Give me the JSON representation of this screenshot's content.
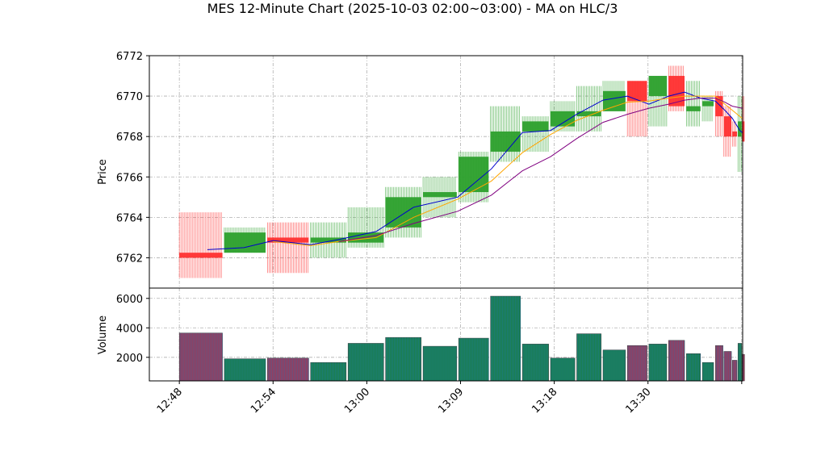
{
  "chart_data": {
    "type": "ohlc-candlestick-with-volume",
    "title": "MES 12-Minute Chart (2025-10-03 02:00~03:00) - MA on HLC/3",
    "price_panel": {
      "ylabel": "Price",
      "ylim": [
        6760.5,
        6772.0
      ],
      "yticks": [
        6762,
        6764,
        6766,
        6768,
        6770,
        6772
      ],
      "grid": true
    },
    "volume_panel": {
      "ylabel": "Volume",
      "ylim": [
        400,
        6700
      ],
      "yticks": [
        2000,
        4000,
        6000
      ],
      "grid": true
    },
    "xlim": [
      -3.2,
      60.1
    ],
    "xticks": [
      {
        "pos": 0,
        "label": "12:48"
      },
      {
        "pos": 10,
        "label": "12:54"
      },
      {
        "pos": 20,
        "label": "13:00"
      },
      {
        "pos": 30,
        "label": "13:09"
      },
      {
        "pos": 40,
        "label": "13:18"
      },
      {
        "pos": 50,
        "label": "13:30"
      },
      {
        "pos": 60,
        "label": ""
      }
    ],
    "colors": {
      "up": "#2ca02c",
      "down": "#ff3030",
      "vol_up_fill": "#1a7f4b",
      "vol_down_fill": "#9c3a5a",
      "vol_bar_line": "#1f77b4",
      "ma_fast": "#0000cd",
      "ma_mid": "#ffa500",
      "ma_slow": "#800080",
      "grid": "#b0b0b0"
    },
    "candles": [
      {
        "x0": 0,
        "x1": 4.6,
        "open": 6762.25,
        "high": 6764.25,
        "low": 6761.0,
        "close": 6762.0,
        "volume": 3650
      },
      {
        "x0": 4.8,
        "x1": 9.2,
        "open": 6762.25,
        "high": 6763.5,
        "low": 6762.25,
        "close": 6763.25,
        "volume": 1900
      },
      {
        "x0": 9.4,
        "x1": 13.8,
        "open": 6763.0,
        "high": 6763.75,
        "low": 6761.25,
        "close": 6762.75,
        "volume": 1950
      },
      {
        "x0": 14.0,
        "x1": 17.8,
        "open": 6762.75,
        "high": 6763.75,
        "low": 6762.0,
        "close": 6763.0,
        "volume": 1650
      },
      {
        "x0": 18.0,
        "x1": 21.8,
        "open": 6762.75,
        "high": 6764.5,
        "low": 6762.5,
        "close": 6763.25,
        "volume": 2950
      },
      {
        "x0": 22.0,
        "x1": 25.8,
        "open": 6763.5,
        "high": 6765.5,
        "low": 6763.0,
        "close": 6765.0,
        "volume": 3350
      },
      {
        "x0": 26.0,
        "x1": 29.6,
        "open": 6765.0,
        "high": 6766.0,
        "low": 6764.0,
        "close": 6765.25,
        "volume": 2750
      },
      {
        "x0": 29.8,
        "x1": 33.0,
        "open": 6765.25,
        "high": 6767.25,
        "low": 6764.75,
        "close": 6767.0,
        "volume": 3300
      },
      {
        "x0": 33.2,
        "x1": 36.4,
        "open": 6767.25,
        "high": 6769.5,
        "low": 6766.75,
        "close": 6768.25,
        "volume": 6150
      },
      {
        "x0": 36.6,
        "x1": 39.4,
        "open": 6768.25,
        "high": 6769.0,
        "low": 6767.25,
        "close": 6768.75,
        "volume": 2900
      },
      {
        "x0": 39.6,
        "x1": 42.2,
        "open": 6768.5,
        "high": 6769.75,
        "low": 6768.25,
        "close": 6769.25,
        "volume": 1950
      },
      {
        "x0": 42.4,
        "x1": 45.0,
        "open": 6769.0,
        "high": 6770.5,
        "low": 6768.25,
        "close": 6769.25,
        "volume": 3600
      },
      {
        "x0": 45.2,
        "x1": 47.6,
        "open": 6769.25,
        "high": 6770.75,
        "low": 6769.25,
        "close": 6770.25,
        "volume": 2500
      },
      {
        "x0": 47.8,
        "x1": 49.9,
        "open": 6770.75,
        "high": 6770.75,
        "low": 6768.0,
        "close": 6769.75,
        "volume": 2800
      },
      {
        "x0": 50.1,
        "x1": 52.0,
        "open": 6770.0,
        "high": 6771.0,
        "low": 6768.5,
        "close": 6771.0,
        "volume": 2900
      },
      {
        "x0": 52.2,
        "x1": 53.9,
        "open": 6771.0,
        "high": 6771.5,
        "low": 6769.25,
        "close": 6769.5,
        "volume": 3150
      },
      {
        "x0": 54.1,
        "x1": 55.6,
        "open": 6769.25,
        "high": 6770.75,
        "low": 6768.5,
        "close": 6769.5,
        "volume": 2250
      },
      {
        "x0": 55.8,
        "x1": 57.0,
        "open": 6769.5,
        "high": 6770.0,
        "low": 6768.75,
        "close": 6769.75,
        "volume": 1650
      },
      {
        "x0": 57.2,
        "x1": 58.0,
        "open": 6770.0,
        "high": 6770.25,
        "low": 6768.0,
        "close": 6769.0,
        "volume": 2800
      },
      {
        "x0": 58.1,
        "x1": 58.9,
        "open": 6769.0,
        "high": 6769.5,
        "low": 6767.0,
        "close": 6768.0,
        "volume": 2400
      },
      {
        "x0": 59.0,
        "x1": 59.5,
        "open": 6768.25,
        "high": 6768.75,
        "low": 6767.5,
        "close": 6768.0,
        "volume": 1800
      },
      {
        "x0": 59.6,
        "x1": 60.0,
        "open": 6768.0,
        "high": 6770.0,
        "low": 6766.25,
        "close": 6768.75,
        "volume": 2950
      },
      {
        "x0": 60.05,
        "x1": 60.3,
        "open": 6768.75,
        "high": 6770.0,
        "low": 6767.75,
        "close": 6767.75,
        "volume": 2200
      }
    ],
    "ma_series": [
      {
        "key": "ma_fast",
        "points": [
          [
            3,
            6762.4
          ],
          [
            6.9,
            6762.5
          ],
          [
            10,
            6762.85
          ],
          [
            14,
            6762.65
          ],
          [
            17,
            6762.9
          ],
          [
            21,
            6763.3
          ],
          [
            25,
            6764.5
          ],
          [
            29.7,
            6765.0
          ],
          [
            33.3,
            6766.4
          ],
          [
            36.6,
            6768.2
          ],
          [
            39.6,
            6768.3
          ],
          [
            42.4,
            6769.1
          ],
          [
            45.2,
            6769.8
          ],
          [
            47.8,
            6770.0
          ],
          [
            50.1,
            6769.6
          ],
          [
            52.2,
            6770.0
          ],
          [
            53.9,
            6770.2
          ],
          [
            55.6,
            6769.9
          ],
          [
            57.2,
            6769.75
          ],
          [
            58.2,
            6769.3
          ],
          [
            59,
            6768.9
          ],
          [
            59.8,
            6768.3
          ],
          [
            60.05,
            6768.2
          ]
        ]
      },
      {
        "key": "ma_mid",
        "points": [
          [
            10,
            6762.8
          ],
          [
            14,
            6762.6
          ],
          [
            17,
            6762.8
          ],
          [
            21,
            6763.0
          ],
          [
            25,
            6764.0
          ],
          [
            29.7,
            6764.9
          ],
          [
            33.3,
            6765.8
          ],
          [
            36.6,
            6767.2
          ],
          [
            39.6,
            6768.1
          ],
          [
            42.4,
            6768.8
          ],
          [
            45.2,
            6769.3
          ],
          [
            47.8,
            6769.7
          ],
          [
            50.1,
            6769.75
          ],
          [
            52.2,
            6769.9
          ],
          [
            53.9,
            6770.0
          ],
          [
            55.6,
            6770.0
          ],
          [
            57.2,
            6770.0
          ],
          [
            58.2,
            6769.6
          ],
          [
            59,
            6769.3
          ],
          [
            60.05,
            6768.9
          ]
        ]
      },
      {
        "key": "ma_slow",
        "points": [
          [
            17,
            6762.8
          ],
          [
            21,
            6763.1
          ],
          [
            25,
            6763.7
          ],
          [
            29.7,
            6764.3
          ],
          [
            33.3,
            6765.1
          ],
          [
            36.6,
            6766.3
          ],
          [
            39.6,
            6767.0
          ],
          [
            42.4,
            6767.9
          ],
          [
            45.2,
            6768.7
          ],
          [
            47.8,
            6769.1
          ],
          [
            50.1,
            6769.4
          ],
          [
            52.2,
            6769.6
          ],
          [
            53.9,
            6769.8
          ],
          [
            55.6,
            6769.9
          ],
          [
            57.2,
            6769.9
          ],
          [
            58.2,
            6769.7
          ],
          [
            59,
            6769.5
          ],
          [
            60.05,
            6769.4
          ]
        ]
      }
    ]
  }
}
